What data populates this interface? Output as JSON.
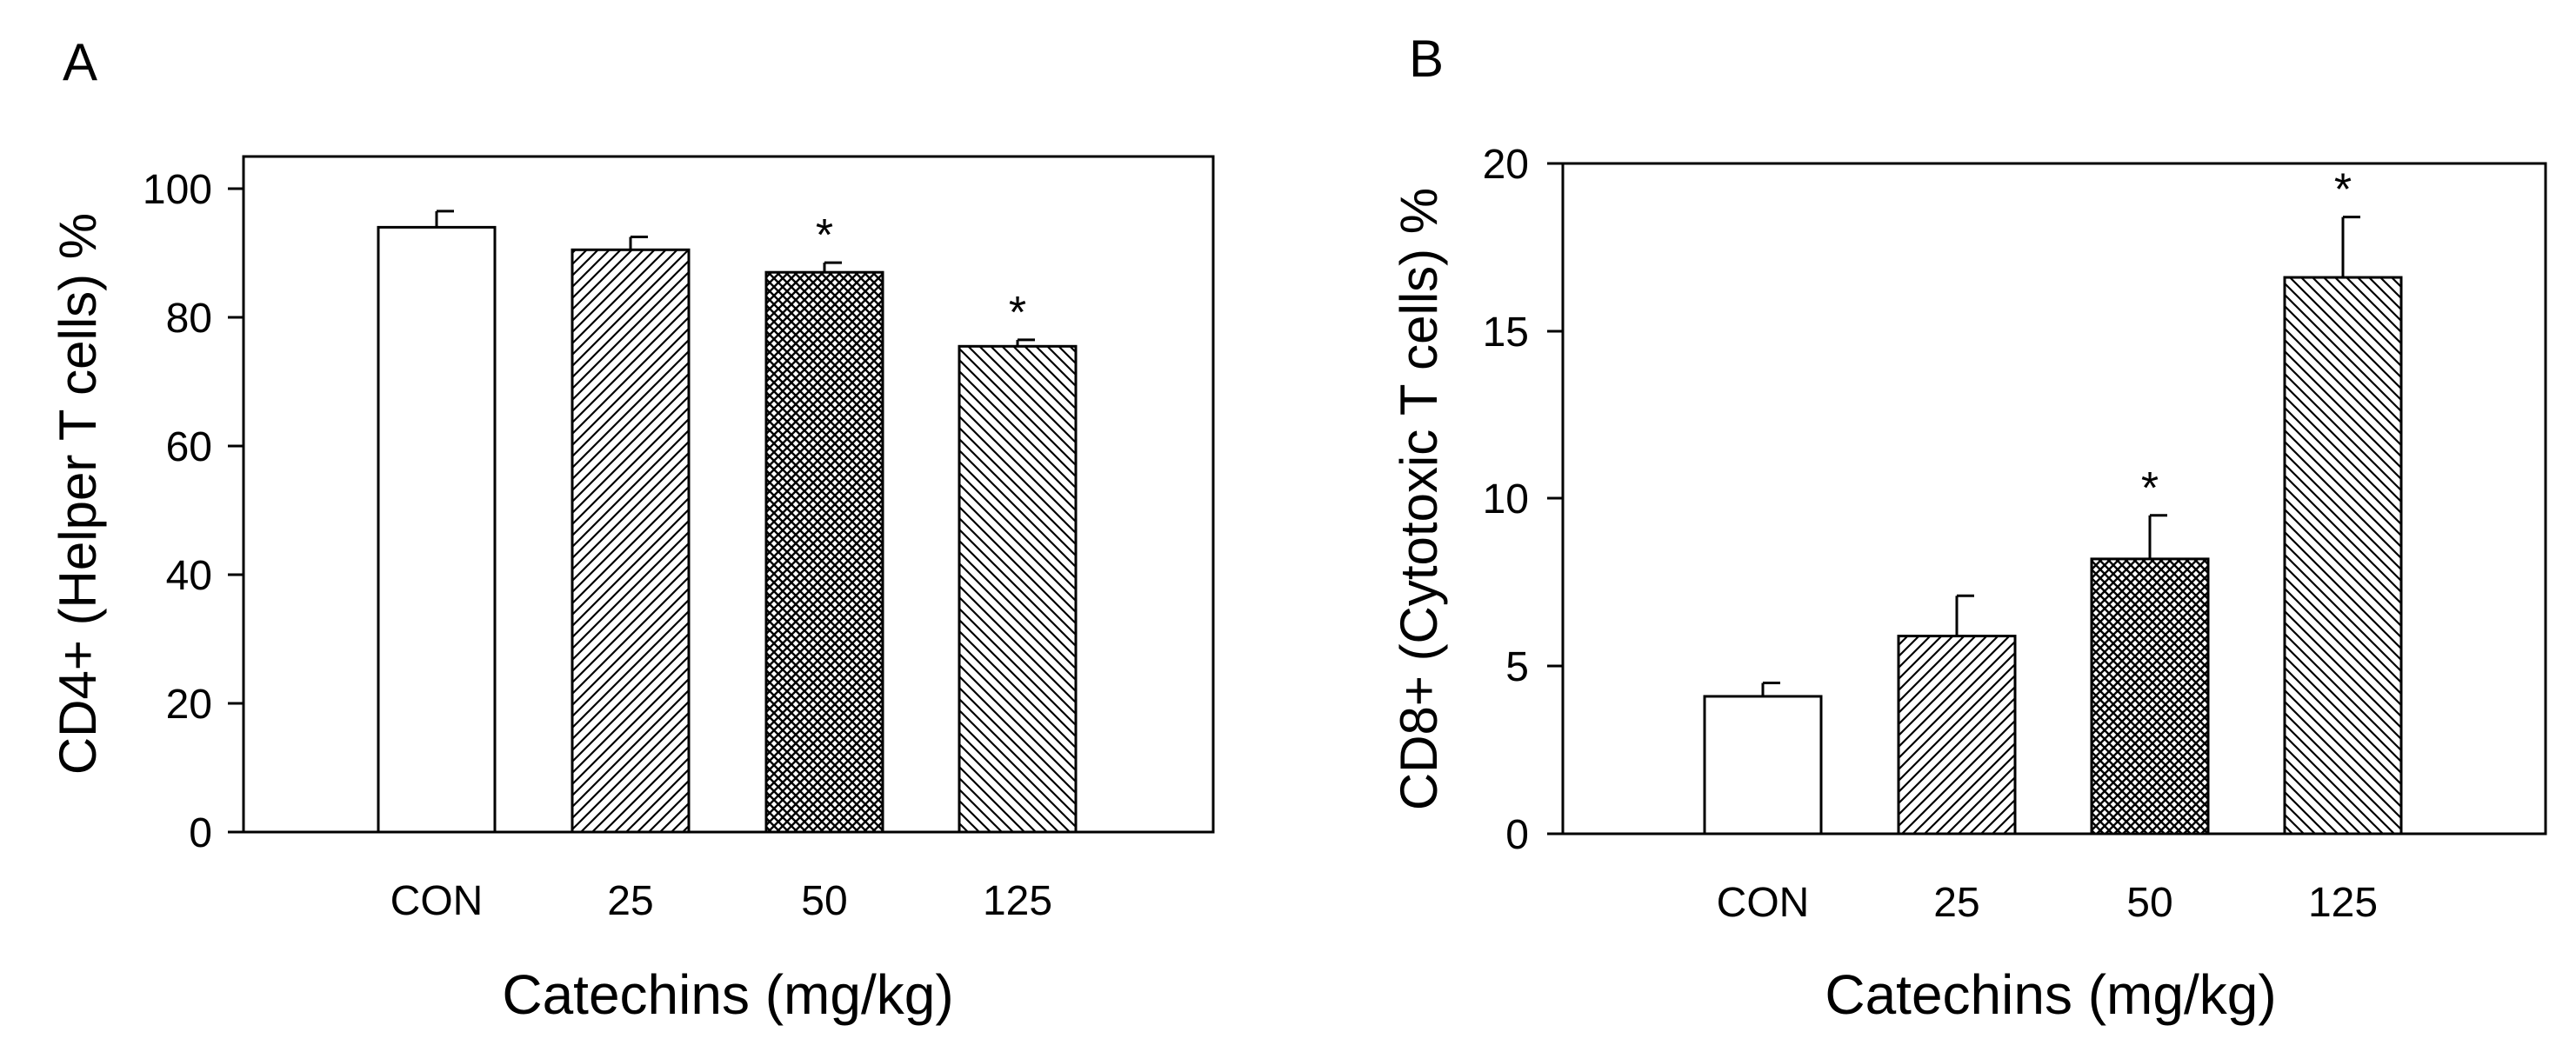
{
  "chart_data": [
    {
      "panel_label": "A",
      "type": "bar",
      "categories": [
        "CON",
        "25",
        "50",
        "125"
      ],
      "values": [
        94,
        90.5,
        87,
        75.5
      ],
      "errors": [
        2.5,
        2,
        1.5,
        1
      ],
      "significance": [
        "",
        "",
        "*",
        "*"
      ],
      "patterns": [
        "none",
        "diagonal-up",
        "crosshatch",
        "diagonal-down"
      ],
      "xlabel": "Catechins (mg/kg)",
      "ylabel": "CD4+ (Helper T cells) %",
      "ylim": [
        0,
        100
      ],
      "yticks": [
        0,
        20,
        40,
        60,
        80,
        100
      ],
      "ytick_labels": [
        "0",
        "20",
        "40",
        "60",
        "80",
        "100"
      ],
      "ymax_frame": 105,
      "grid": false
    },
    {
      "panel_label": "B",
      "type": "bar",
      "categories": [
        "CON",
        "25",
        "50",
        "125"
      ],
      "values": [
        4.1,
        5.9,
        8.2,
        16.6
      ],
      "errors": [
        0.4,
        1.2,
        1.3,
        1.8
      ],
      "significance": [
        "",
        "",
        "*",
        "*"
      ],
      "patterns": [
        "none",
        "diagonal-up",
        "crosshatch",
        "diagonal-down"
      ],
      "xlabel": "Catechins (mg/kg)",
      "ylabel": "CD8+ (Cytotoxic T cells) %",
      "ylim": [
        0,
        20
      ],
      "yticks": [
        0,
        5,
        10,
        15,
        20
      ],
      "ytick_labels": [
        "0",
        "5",
        "10",
        "15",
        "20"
      ],
      "ymax_frame": 20,
      "grid": false
    }
  ],
  "colors": {
    "axis": "#000000",
    "bar_fill": "#ffffff",
    "hatch": "#000000",
    "star": "#444444"
  }
}
